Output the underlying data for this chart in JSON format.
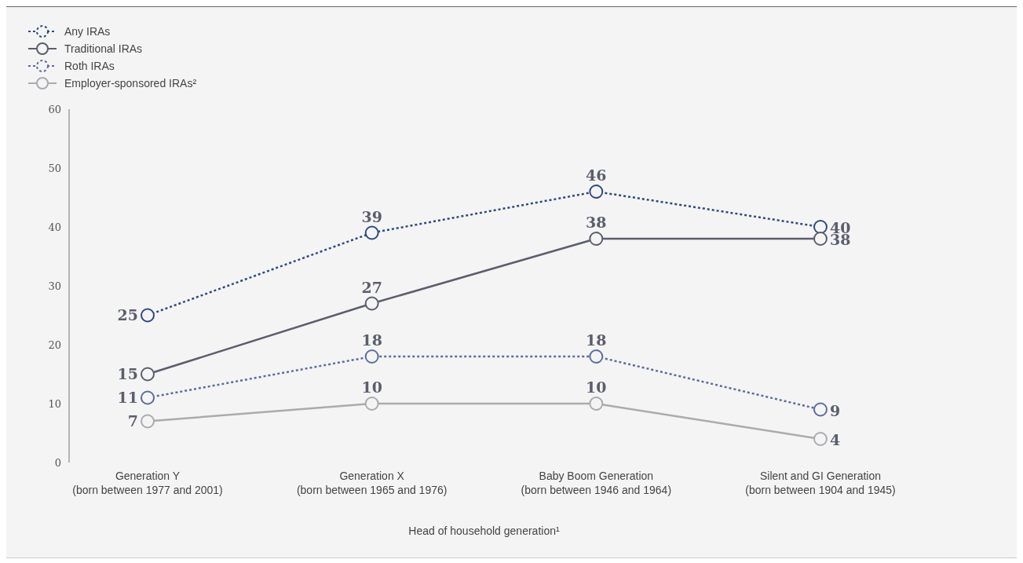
{
  "chart_data": {
    "type": "line",
    "xlabel": "Head of household generation¹",
    "categories": [
      "Generation Y (born between 1977 and 2001)",
      "Generation X (born between 1965 and 1976)",
      "Baby Boom Generation (born between 1946 and 1964)",
      "Silent and GI Generation (born between 1904 and 1945)"
    ],
    "series": [
      {
        "name": "Any IRAs",
        "color": "#2f4a7e",
        "line_style": "dotted",
        "values": [
          25,
          39,
          46,
          40
        ]
      },
      {
        "name": "Traditional IRAs",
        "color": "#5b5e6b",
        "line_style": "solid",
        "values": [
          15,
          27,
          38,
          38
        ]
      },
      {
        "name": "Roth IRAs",
        "color": "#5d6d98",
        "line_style": "dotted",
        "values": [
          11,
          18,
          18,
          9
        ]
      },
      {
        "name": "Employer-sponsored IRAs²",
        "color": "#a9abae",
        "line_style": "solid",
        "values": [
          7,
          10,
          10,
          4
        ]
      }
    ],
    "ylim": [
      0,
      60
    ],
    "yticks": [
      0,
      10,
      20,
      30,
      40,
      50,
      60
    ],
    "grid": false,
    "legend": "top left",
    "marker": "circle",
    "data_labels": true
  }
}
